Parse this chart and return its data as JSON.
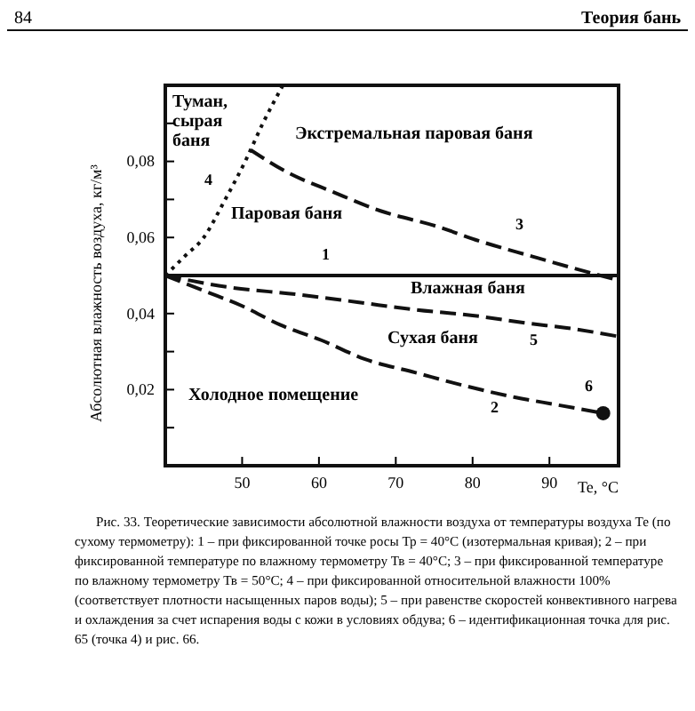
{
  "chart_data": {
    "type": "line",
    "xlabel": "Te, °C",
    "ylabel": "Абсолютная влажность воздуха, кг/м³",
    "xlim": [
      40,
      99
    ],
    "ylim": [
      0,
      0.1
    ],
    "xticks": [
      50,
      60,
      70,
      80,
      90
    ],
    "yticks": [
      {
        "value": 0.01,
        "label": null
      },
      {
        "value": 0.02,
        "label": "0,02"
      },
      {
        "value": 0.03,
        "label": null
      },
      {
        "value": 0.04,
        "label": "0,04"
      },
      {
        "value": 0.05,
        "label": null
      },
      {
        "value": 0.06,
        "label": "0,06"
      },
      {
        "value": 0.07,
        "label": null
      },
      {
        "value": 0.08,
        "label": "0,08"
      },
      {
        "value": 0.09,
        "label": null
      }
    ],
    "grid": false,
    "series": [
      {
        "name": "1",
        "color": "#111111",
        "line_style": "solid",
        "x": [
          40,
          99
        ],
        "values": [
          0.05,
          0.05
        ]
      },
      {
        "name": "2",
        "color": "#111111",
        "line_style": "dashed",
        "x": [
          40,
          45,
          50,
          55,
          60.3,
          66,
          72.5,
          79,
          85.5,
          91,
          97
        ],
        "values": [
          0.05,
          0.046,
          0.042,
          0.037,
          0.033,
          0.028,
          0.0245,
          0.021,
          0.018,
          0.016,
          0.0138
        ]
      },
      {
        "name": "3",
        "color": "#111111",
        "line_style": "dashed",
        "x": [
          51.1,
          56,
          61.8,
          68,
          75.2,
          81,
          87.8,
          93,
          98.5
        ],
        "values": [
          0.083,
          0.077,
          0.072,
          0.067,
          0.063,
          0.059,
          0.055,
          0.052,
          0.049
        ]
      },
      {
        "name": "4",
        "color": "#111111",
        "line_style": "dotted",
        "x": [
          40,
          42.5,
          45,
          47.8,
          50.4,
          52.7,
          55.3
        ],
        "values": [
          0.05,
          0.055,
          0.06,
          0.07,
          0.08,
          0.09,
          0.1
        ]
      },
      {
        "name": "5",
        "color": "#111111",
        "line_style": "dashed",
        "x": [
          40,
          48,
          57.3,
          65,
          72.5,
          80,
          87,
          93,
          98.9
        ],
        "values": [
          0.05,
          0.047,
          0.045,
          0.043,
          0.041,
          0.0395,
          0.0375,
          0.036,
          0.034
        ]
      },
      {
        "name": "6",
        "type": "scatter",
        "color": "#111111",
        "marker": "circle",
        "x": [
          97
        ],
        "values": [
          0.0138
        ]
      }
    ],
    "annotations": [
      "84",
      "Теория бань",
      "Туман,\nсырая\nбаня",
      "Экстремальная паровая баня",
      "Паровая баня",
      "Влажная баня",
      "Сухая баня",
      "Холодное помещение",
      "Рис. 33. Теоретические зависимости абсолютной влажности воздуха от температуры воздуха Те (по сухому термометру): 1 – при фиксированной точке росы Тр = 40°С (изотермальная кривая); 2 – при фиксированной температуре по влажному термометру Тв = 40°С; 3 – при фиксированной температуре по влажному термометру Тв = 50°С; 4 – при фиксированной относительной влажности 100% (соответствует плотности насыщенных паров воды); 5 – при равенстве скоростей конвективного нагрева и охлаждения за счет испарения воды с кожи в условиях обдува; 6 – идентификационная точка для рис. 65 (точка 4) и рис. 66."
    ]
  }
}
